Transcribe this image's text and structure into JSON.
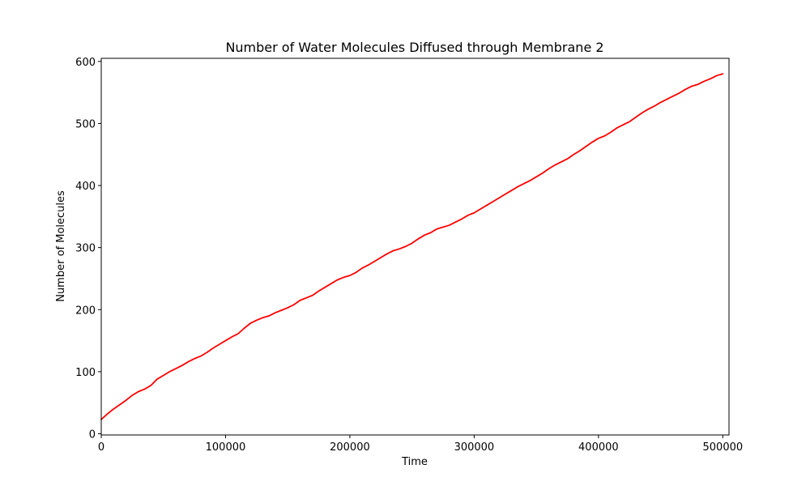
{
  "chart_data": {
    "type": "line",
    "title": "Number of Water Molecules Diffused through Membrane 2",
    "xlabel": "Time",
    "ylabel": "Number of Molecules",
    "xlim": [
      0,
      505000
    ],
    "ylim": [
      -2,
      605
    ],
    "x_ticks": [
      0,
      100000,
      200000,
      300000,
      400000,
      500000
    ],
    "x_tick_labels": [
      "0",
      "100000",
      "200000",
      "300000",
      "400000",
      "500000"
    ],
    "y_ticks": [
      0,
      100,
      200,
      300,
      400,
      500,
      600
    ],
    "y_tick_labels": [
      "0",
      "100",
      "200",
      "300",
      "400",
      "500",
      "600"
    ],
    "grid": false,
    "line_color": "#ff0000",
    "series": [
      {
        "x": [
          0,
          5000,
          10000,
          15000,
          20000,
          25000,
          30000,
          35000,
          40000,
          45000,
          50000,
          55000,
          60000,
          65000,
          70000,
          75000,
          80000,
          85000,
          90000,
          95000,
          100000,
          105000,
          110000,
          115000,
          120000,
          125000,
          130000,
          135000,
          140000,
          145000,
          150000,
          155000,
          160000,
          165000,
          170000,
          175000,
          180000,
          185000,
          190000,
          195000,
          200000,
          205000,
          210000,
          215000,
          220000,
          225000,
          230000,
          235000,
          240000,
          245000,
          250000,
          255000,
          260000,
          265000,
          270000,
          275000,
          280000,
          285000,
          290000,
          295000,
          300000,
          305000,
          310000,
          315000,
          320000,
          325000,
          330000,
          335000,
          340000,
          345000,
          350000,
          355000,
          360000,
          365000,
          370000,
          375000,
          380000,
          385000,
          390000,
          395000,
          400000,
          405000,
          410000,
          415000,
          420000,
          425000,
          430000,
          435000,
          440000,
          445000,
          450000,
          455000,
          460000,
          465000,
          470000,
          475000,
          480000,
          485000,
          490000,
          495000,
          500000
        ],
        "y": [
          23,
          32,
          40,
          47,
          54,
          62,
          68,
          72,
          78,
          88,
          94,
          100,
          105,
          110,
          116,
          121,
          125,
          131,
          138,
          144,
          150,
          156,
          161,
          170,
          178,
          183,
          187,
          190,
          195,
          199,
          203,
          208,
          215,
          219,
          223,
          230,
          236,
          242,
          248,
          252,
          255,
          260,
          267,
          272,
          278,
          284,
          290,
          295,
          298,
          302,
          307,
          314,
          320,
          324,
          330,
          333,
          336,
          341,
          346,
          352,
          356,
          362,
          368,
          374,
          380,
          386,
          392,
          398,
          403,
          408,
          414,
          420,
          427,
          433,
          438,
          443,
          450,
          456,
          463,
          470,
          476,
          480,
          486,
          493,
          498,
          503,
          510,
          517,
          523,
          528,
          534,
          539,
          544,
          549,
          555,
          560,
          563,
          568,
          572,
          577,
          580
        ]
      }
    ]
  }
}
